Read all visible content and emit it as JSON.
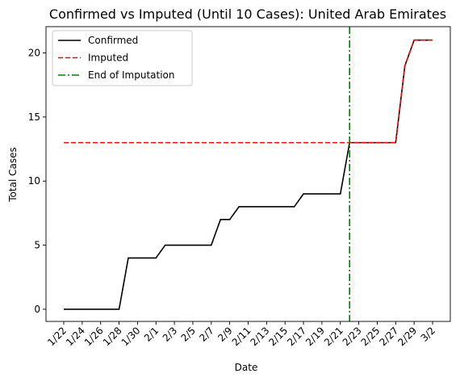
{
  "chart_data": {
    "type": "line",
    "title": "Confirmed vs Imputed (Until 10 Cases): United Arab Emirates",
    "xlabel": "Date",
    "ylabel": "Total Cases",
    "x": [
      "1/22",
      "1/23",
      "1/24",
      "1/25",
      "1/26",
      "1/27",
      "1/28",
      "1/29",
      "1/30",
      "1/31",
      "2/1",
      "2/2",
      "2/3",
      "2/4",
      "2/5",
      "2/6",
      "2/7",
      "2/8",
      "2/9",
      "2/10",
      "2/11",
      "2/12",
      "2/13",
      "2/14",
      "2/15",
      "2/16",
      "2/17",
      "2/18",
      "2/19",
      "2/20",
      "2/21",
      "2/22",
      "2/23",
      "2/24",
      "2/25",
      "2/26",
      "2/27",
      "2/28",
      "2/29",
      "3/1",
      "3/2"
    ],
    "x_tick_labels": [
      "1/22",
      "1/24",
      "1/26",
      "1/28",
      "1/30",
      "2/1",
      "2/3",
      "2/5",
      "2/7",
      "2/9",
      "2/11",
      "2/13",
      "2/15",
      "2/17",
      "2/19",
      "2/21",
      "2/23",
      "2/25",
      "2/27",
      "2/29",
      "3/2"
    ],
    "y_ticks": [
      0,
      5,
      10,
      15,
      20
    ],
    "ylim": [
      -0.95,
      22.05
    ],
    "grid": false,
    "legend_position": "top-left",
    "series": [
      {
        "name": "Confirmed",
        "color": "#000000",
        "line_style": "solid",
        "values": [
          0,
          0,
          0,
          0,
          0,
          0,
          0,
          4,
          4,
          4,
          4,
          5,
          5,
          5,
          5,
          5,
          5,
          7,
          7,
          8,
          8,
          8,
          8,
          8,
          8,
          8,
          9,
          9,
          9,
          9,
          9,
          13,
          13,
          13,
          13,
          13,
          13,
          19,
          21,
          21,
          21
        ]
      },
      {
        "name": "Imputed",
        "color": "#ff0000",
        "line_style": "dashed",
        "values": [
          13,
          13,
          13,
          13,
          13,
          13,
          13,
          13,
          13,
          13,
          13,
          13,
          13,
          13,
          13,
          13,
          13,
          13,
          13,
          13,
          13,
          13,
          13,
          13,
          13,
          13,
          13,
          13,
          13,
          13,
          13,
          13,
          13,
          13,
          13,
          13,
          13,
          19,
          21,
          21,
          21
        ]
      }
    ],
    "vertical_line": {
      "name": "End of Imputation",
      "x": "2/22",
      "color": "#008000",
      "line_style": "dash-dot"
    }
  }
}
